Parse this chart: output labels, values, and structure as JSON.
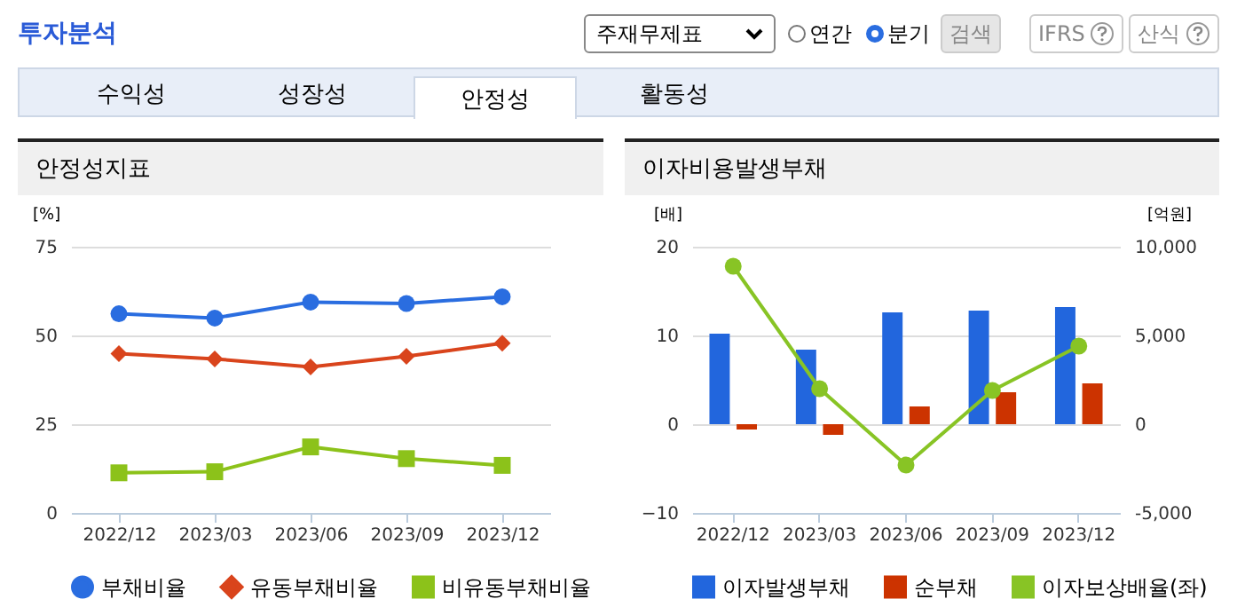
{
  "chart_data": [
    {
      "type": "other",
      "title": "투자분석",
      "annotations": [
        "주재무제표",
        "연간",
        "분기",
        "검색",
        "IFRS",
        "산식",
        "수익성",
        "성장성",
        "안정성",
        "활동성"
      ]
    },
    {
      "type": "line",
      "title": "안정성지표",
      "ylabel": "[%]",
      "categories": [
        "2022/12",
        "2023/03",
        "2023/06",
        "2023/09",
        "2023/12"
      ],
      "ylim": [
        0,
        75
      ],
      "yticks": [
        0,
        25,
        50,
        75
      ],
      "grid": "y",
      "legend": "bottom",
      "line_style": "solid",
      "series": [
        {
          "name": "부채비율",
          "color": "#2a6de0",
          "marker": "circle",
          "values": [
            56.1,
            54.9,
            59.4,
            59.0,
            60.9
          ]
        },
        {
          "name": "유동부채비율",
          "color": "#d9441c",
          "marker": "diamond",
          "values": [
            44.9,
            43.4,
            41.1,
            44.1,
            47.8
          ]
        },
        {
          "name": "비유동부채비율",
          "color": "#8cc21a",
          "marker": "square",
          "values": [
            11.3,
            11.6,
            18.6,
            15.3,
            13.4
          ]
        }
      ]
    },
    {
      "type": "bar",
      "title": "이자비용발생부채",
      "ylabel": "[배]",
      "y2label": "[억원]",
      "categories": [
        "2022/12",
        "2023/03",
        "2023/06",
        "2023/09",
        "2023/12"
      ],
      "ylim": [
        -10,
        20
      ],
      "yticks": [
        -10,
        0,
        10,
        20
      ],
      "y2lim": [
        -5000,
        10000
      ],
      "y2ticks": [
        {
          "value": -5000,
          "label": "-5,000"
        },
        0,
        {
          "value": 5000,
          "label": "5,000"
        },
        {
          "value": 10000,
          "label": "10,000"
        }
      ],
      "grid": "y",
      "legend": "bottom",
      "series": [
        {
          "name": "이자발생부채",
          "color": "#2266dd",
          "axis": "y2",
          "values": [
            5100,
            4200,
            6300,
            6400,
            6600
          ]
        },
        {
          "name": "순부채",
          "color": "#cc3300",
          "axis": "y2",
          "values": [
            -300,
            -600,
            1000,
            1800,
            2300
          ]
        },
        {
          "name": "이자보상배율(좌)",
          "type": "line",
          "color": "#88c425",
          "marker": "circle",
          "values": [
            17.8,
            4.0,
            -4.6,
            3.8,
            8.8
          ]
        }
      ]
    }
  ]
}
